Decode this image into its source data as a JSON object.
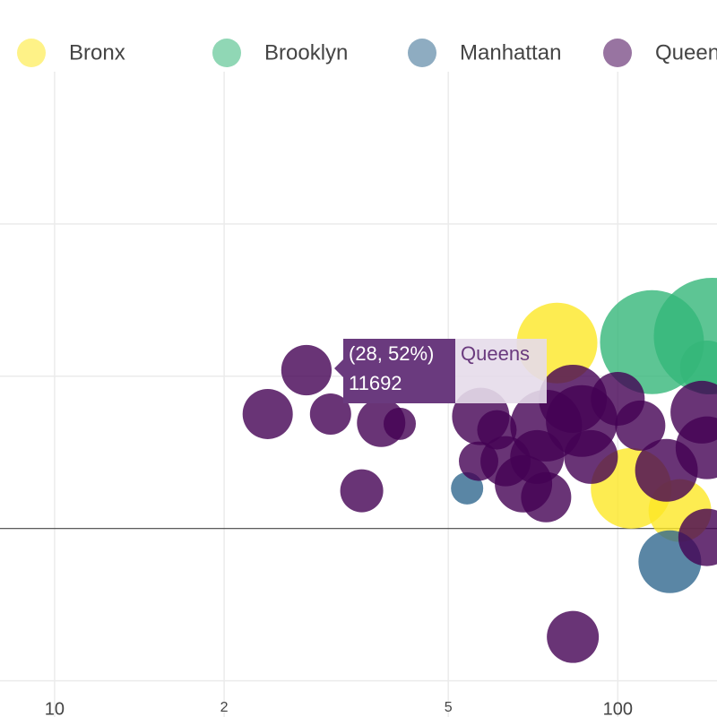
{
  "chart_data": {
    "type": "scatter",
    "log_x": true,
    "grid": true,
    "legend": "top",
    "xlim": [
      8,
      150
    ],
    "xticks": [
      10,
      {
        "value": 20,
        "label": "2"
      },
      {
        "value": 50,
        "label": "5"
      },
      100
    ],
    "ylim": [
      -56,
      150
    ],
    "yticks": [
      -50,
      0,
      50,
      100
    ],
    "series": [
      {
        "name": "Bronx",
        "color": "#fde725",
        "x": [
          78,
          105.6,
          128.9
        ],
        "values": [
          60.9,
          13.2,
          5.9
        ],
        "sizes": [
          29956,
          29956,
          18121
        ]
      },
      {
        "name": "Brooklyn",
        "color": "#35b779",
        "x": [
          115,
          147,
          144
        ],
        "values": [
          61.2,
          63.2,
          52.9
        ],
        "sizes": [
          49763,
          62500,
          13314
        ]
      },
      {
        "name": "Manhattan",
        "color": "#31688e",
        "x": [
          54,
          123.7
        ],
        "values": [
          13.2,
          -10.9
        ],
        "sizes": [
          4793,
          18121
        ]
      },
      {
        "name": "Queens",
        "color": "#440154",
        "x": [
          28,
          23.9,
          30.9,
          38,
          41,
          35.1,
          83.2,
          57.1,
          61,
          56.6,
          63.2,
          68,
          74.6,
          74.6,
          83.2,
          86.3,
          100,
          89.6,
          109.6,
          122,
          141,
          144,
          144,
          71.9
        ],
        "values": [
          52,
          37.6,
          37.6,
          34.7,
          34.4,
          12.4,
          -35.6,
          36.8,
          32.4,
          22.1,
          22.1,
          14.7,
          10.3,
          33.8,
          42.6,
          35.3,
          42.6,
          23.5,
          33.8,
          19.1,
          38.2,
          26.5,
          -2.9,
          23.5
        ],
        "sizes": [
          11692,
          11598,
          7825,
          10784,
          4793,
          8521,
          12441,
          15148,
          7160,
          7160,
          11598,
          15148,
          11598,
          23669,
          21361,
          23669,
          13314,
          13314,
          11598,
          18121,
          18121,
          18121,
          15148,
          13314
        ]
      }
    ],
    "tooltip": {
      "coords": "(28, 52%)",
      "size": "11692",
      "trace": "Queens"
    }
  }
}
